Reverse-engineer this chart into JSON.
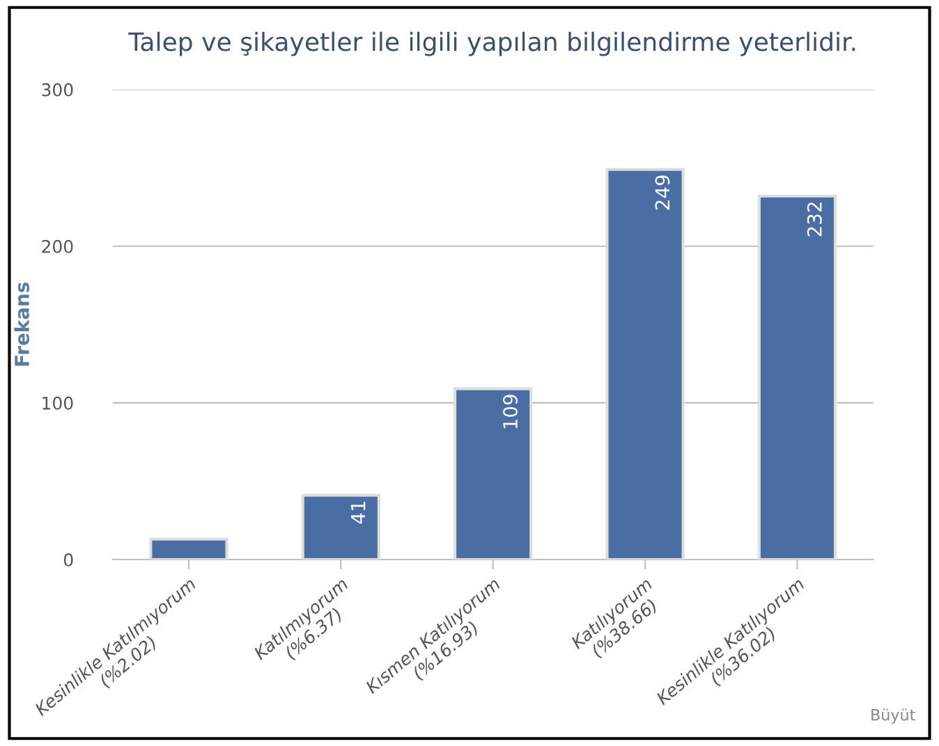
{
  "chart_data": {
    "type": "bar",
    "title": "Talep ve şikayetler ile ilgili yapılan bilgilendirme yeterlidir.",
    "ylabel": "Frekans",
    "categories": [
      "Kesinlikle Katılmıyorum\n(%2.02)",
      "Katılmıyorum\n(%6.37)",
      "Kısmen Katılıyorum\n(%16.93)",
      "Katılıyorum\n(%38.66)",
      "Kesinlikle Katılıyorum\n(%36.02)"
    ],
    "values": [
      13,
      41,
      109,
      249,
      232
    ],
    "value_labels": [
      null,
      "41",
      "109",
      "249",
      "232"
    ],
    "color": "#4a6ea3",
    "ylim": [
      0,
      300
    ],
    "yticks": [
      0,
      100,
      200,
      300
    ],
    "grid": "y",
    "annotations": [
      "Büyüt"
    ]
  }
}
